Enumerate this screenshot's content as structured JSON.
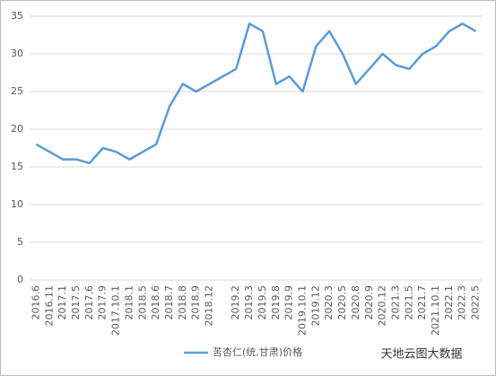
{
  "chart_data": {
    "type": "line",
    "categories": [
      "2016.6",
      "2016.11",
      "2017.1",
      "2017.5",
      "2017.6",
      "2017.9",
      "2017.10.1",
      "2018.1",
      "2018.5",
      "2018.6",
      "2018.7",
      "2018.8",
      "2018.9",
      "2018.12",
      null,
      "2019.2",
      "2019.3",
      "2019.5",
      "2019.8",
      "2019.9",
      "2019.10.1",
      "2019.12",
      "2020.3",
      "2020.5",
      "2020.8",
      "2020.9",
      "2020.12",
      "2021.3",
      "2021.5",
      "2021.7",
      "2021.10.1",
      "2022.1",
      "2022.3",
      "2022.5"
    ],
    "series": [
      {
        "name": "苦杏仁(统,甘肃)价格",
        "color": "#5b9bd5",
        "values": [
          18,
          17,
          16,
          16,
          15.5,
          17.5,
          17,
          16,
          17,
          18,
          23,
          26,
          25,
          26,
          27,
          28,
          34,
          33,
          26,
          27,
          25,
          31,
          33,
          30,
          26,
          28,
          30,
          28.5,
          28,
          30,
          31,
          33,
          34,
          33
        ]
      }
    ],
    "ylim": [
      0,
      35
    ],
    "yticks": [
      0,
      5,
      10,
      15,
      20,
      25,
      30,
      35
    ],
    "grid": true,
    "watermark": "天地云图大数据"
  }
}
